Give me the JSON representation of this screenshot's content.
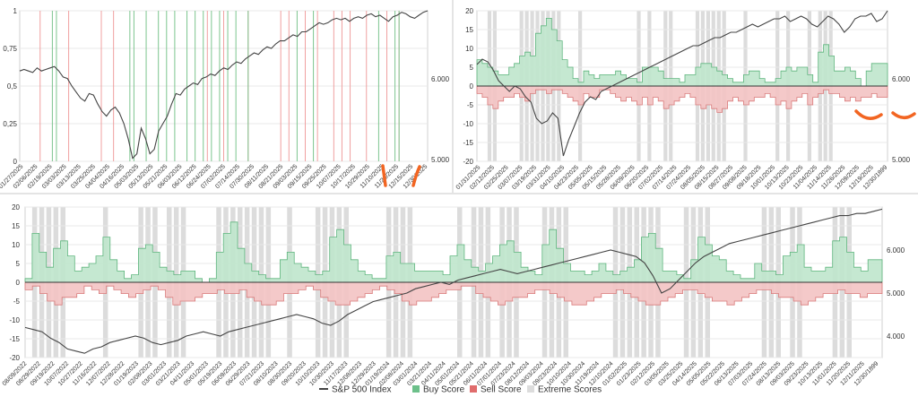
{
  "colors": {
    "sp500_line": "#444444",
    "buy_fill": "#bfe5cc",
    "buy_stroke": "#5fb57e",
    "sell_fill": "#f3c3c3",
    "sell_stroke": "#d97b7b",
    "extreme_fill": "#dcdcdc",
    "annotation": "#f26522",
    "grid": "#e8e8e8",
    "divider": "#c8c8c8"
  },
  "legend": {
    "items": [
      {
        "label": "S&P 500 Index",
        "swatch": "line",
        "color": "#444444"
      },
      {
        "label": "Buy Score",
        "swatch": "box",
        "color": "#6cc08a"
      },
      {
        "label": "Sell Score",
        "swatch": "box",
        "color": "#e06c6c"
      },
      {
        "label": "Extreme Scores",
        "swatch": "box",
        "color": "#dcdcdc"
      }
    ]
  },
  "chart_data": [
    {
      "type": "line",
      "title": "",
      "left_axis": {
        "ticks": [
          "0",
          "0,25",
          "0,5",
          "0,75",
          "1"
        ],
        "ylim": [
          0,
          1
        ]
      },
      "right_axis": {
        "ticks": [
          "5.000",
          "6.000"
        ]
      },
      "x_tick_labels": [
        "01/27/2025",
        "02/06/2025",
        "02/19/2025",
        "03/03/2025",
        "03/13/2025",
        "03/25/2025",
        "04/04/2025",
        "04/16/2025",
        "05/03/2025",
        "05/13/2025",
        "05/21/2025",
        "06/03/2025",
        "06/12/2025",
        "06/24/2025",
        "07/02/2025",
        "07/14/2025",
        "07/30/2025",
        "08/11/2025",
        "08/21/2025",
        "09/03/2025",
        "09/15/2025",
        "09/25/2025",
        "10/07/2025",
        "10/17/2025",
        "10/29/2025",
        "11/10/2025",
        "11/20/2025",
        "12/15/2025",
        "12/30/2025"
      ],
      "series": [
        {
          "name": "S&P 500 Index",
          "values": [
            0.6,
            0.61,
            0.6,
            0.59,
            0.62,
            0.6,
            0.61,
            0.62,
            0.63,
            0.6,
            0.56,
            0.55,
            0.5,
            0.46,
            0.42,
            0.4,
            0.45,
            0.44,
            0.38,
            0.33,
            0.3,
            0.34,
            0.36,
            0.32,
            0.25,
            0.15,
            0.02,
            0.05,
            0.22,
            0.15,
            0.05,
            0.08,
            0.2,
            0.25,
            0.3,
            0.38,
            0.45,
            0.44,
            0.48,
            0.5,
            0.52,
            0.51,
            0.55,
            0.56,
            0.58,
            0.57,
            0.6,
            0.62,
            0.61,
            0.64,
            0.66,
            0.65,
            0.68,
            0.7,
            0.72,
            0.71,
            0.74,
            0.76,
            0.75,
            0.78,
            0.8,
            0.8,
            0.82,
            0.84,
            0.83,
            0.86,
            0.86,
            0.88,
            0.9,
            0.92,
            0.91,
            0.92,
            0.94,
            0.95,
            0.94,
            0.95,
            0.93,
            0.95,
            0.96,
            0.95,
            0.97,
            0.98,
            0.96,
            0.97,
            0.95,
            0.93,
            0.96,
            0.97,
            0.99,
            0.98,
            0.96,
            0.95,
            0.97,
            0.99,
            1.0
          ]
        }
      ],
      "buy_signal_positions": [
        0.08,
        0.09,
        0.27,
        0.28,
        0.31,
        0.34,
        0.36,
        0.38,
        0.41,
        0.43,
        0.45,
        0.47,
        0.49,
        0.51,
        0.53,
        0.56,
        0.68,
        0.72,
        0.88,
        0.92,
        0.93
      ],
      "sell_signal_positions": [
        0.05,
        0.12,
        0.2,
        0.23,
        0.46,
        0.5,
        0.56,
        0.64,
        0.66,
        0.7,
        0.73,
        0.77,
        0.79,
        0.81,
        0.85,
        0.9,
        0.93
      ]
    },
    {
      "type": "area",
      "title": "",
      "left_axis": {
        "ticks": [
          "-20",
          "-15",
          "-10",
          "-5",
          "0",
          "5",
          "10",
          "15",
          "20"
        ],
        "ylim": [
          -20,
          20
        ]
      },
      "right_axis": {
        "ticks": [
          "5.000",
          "6.000"
        ]
      },
      "x_tick_labels": [
        "01/31/2025",
        "02/12/2025",
        "02/25/2025",
        "03/07/2025",
        "03/19/2025",
        "03/31/2025",
        "04/10/2025",
        "04/23/2025",
        "05/05/2025",
        "05/15/2025",
        "05/28/2025",
        "06/09/2025",
        "06/20/2025",
        "07/02/2025",
        "07/14/2025",
        "07/24/2025",
        "08/05/2025",
        "08/15/2025",
        "08/27/2025",
        "09/08/2025",
        "09/18/2025",
        "10/01/2025",
        "10/13/2025",
        "10/23/2025",
        "11/04/2025",
        "11/14/2025",
        "11/26/2025",
        "12/09/2025",
        "12/19/2025",
        "12/30/1899"
      ],
      "buy_score": [
        7,
        6,
        5,
        4,
        3,
        3,
        5,
        6,
        8,
        9,
        8,
        14,
        16,
        18,
        15,
        12,
        7,
        5,
        2,
        1,
        4,
        3,
        2,
        3,
        3,
        3,
        4,
        3,
        2,
        2,
        1,
        5,
        5,
        5,
        4,
        2,
        2,
        2,
        1,
        3,
        3,
        5,
        6,
        6,
        5,
        4,
        3,
        2,
        1,
        1,
        3,
        4,
        4,
        2,
        1,
        1,
        2,
        4,
        5,
        4,
        5,
        5,
        3,
        1,
        9,
        11,
        8,
        4,
        4,
        5,
        4,
        2,
        0,
        4,
        6,
        6,
        6
      ],
      "sell_score": [
        -2,
        -3,
        -5,
        -6,
        -4,
        -3,
        -3,
        -2,
        -3,
        -4,
        -2,
        -1,
        -1,
        -2,
        -1,
        -1,
        -2,
        -3,
        -4,
        -5,
        -2,
        -3,
        -3,
        -1,
        -1,
        -2,
        -3,
        -4,
        -3,
        -4,
        -5,
        -3,
        -5,
        -3,
        -4,
        -6,
        -5,
        -4,
        -3,
        -2,
        -3,
        -5,
        -6,
        -5,
        -6,
        -7,
        -6,
        -4,
        -3,
        -4,
        -5,
        -4,
        -3,
        -3,
        -2,
        -3,
        -5,
        -4,
        -6,
        -4,
        -3,
        -2,
        -5,
        -3,
        -2,
        -1,
        -2,
        -2,
        -3,
        -4,
        -3,
        -4,
        -3,
        -3,
        -2,
        -3,
        -3
      ],
      "series": [
        {
          "name": "S&P 500 Index",
          "values": [
            6.0,
            6.1,
            6.05,
            5.9,
            5.7,
            5.6,
            5.5,
            5.6,
            5.55,
            5.4,
            5.3,
            5.0,
            4.9,
            4.95,
            5.1,
            5.0,
            4.3,
            4.6,
            4.85,
            5.1,
            5.3,
            5.4,
            5.35,
            5.5,
            5.55,
            5.6,
            5.65,
            5.7,
            5.75,
            5.8,
            5.85,
            5.9,
            5.95,
            6.0,
            6.05,
            6.1,
            6.15,
            6.2,
            6.25,
            6.3,
            6.35,
            6.35,
            6.4,
            6.45,
            6.5,
            6.5,
            6.55,
            6.6,
            6.6,
            6.65,
            6.7,
            6.75,
            6.7,
            6.75,
            6.8,
            6.85,
            6.85,
            6.9,
            6.8,
            6.85,
            6.9,
            6.85,
            6.75,
            6.7,
            6.8,
            6.9,
            6.85,
            6.75,
            6.6,
            6.7,
            6.85,
            6.9,
            6.9,
            6.95,
            6.8,
            6.85,
            7.0
          ]
        }
      ]
    },
    {
      "type": "area",
      "title": "",
      "left_axis": {
        "ticks": [
          "-20",
          "-15",
          "-10",
          "-5",
          "0",
          "5",
          "10",
          "15",
          "20"
        ],
        "ylim": [
          -20,
          20
        ]
      },
      "right_axis": {
        "ticks": [
          "4.000",
          "5.000",
          "6.000"
        ]
      },
      "x_tick_labels": [
        "08/09/2022",
        "08/29/2022",
        "09/19/2022",
        "10/07/2022",
        "10/27/2022",
        "11/16/2022",
        "12/07/2022",
        "12/28/2022",
        "01/19/2023",
        "02/08/2023",
        "03/01/2023",
        "03/21/2023",
        "04/11/2023",
        "05/01/2023",
        "05/19/2023",
        "06/09/2023",
        "06/29/2023",
        "07/21/2023",
        "08/10/2023",
        "08/30/2023",
        "09/20/2023",
        "10/10/2023",
        "10/30/2023",
        "11/17/2023",
        "12/08/2023",
        "12/29/2023",
        "01/19/2024",
        "02/08/2024",
        "03/01/2024",
        "03/21/2024",
        "04/11/2024",
        "05/01/2024",
        "05/21/2024",
        "06/11/2024",
        "07/01/2024",
        "07/23/2024",
        "08/12/2024",
        "09/03/2024",
        "09/23/2024",
        "10/10/2024",
        "10/30/2024",
        "11/19/2024",
        "12/10/2024",
        "01/02/2025",
        "01/23/2025",
        "02/12/2025",
        "03/05/2025",
        "03/25/2025",
        "04/14/2025",
        "05/05/2025",
        "05/22/2025",
        "06/13/2025",
        "07/03/2025",
        "07/24/2025",
        "08/13/2025",
        "09/03/2025",
        "09/23/2025",
        "10/13/2025",
        "11/01/2025",
        "11/20/2025",
        "12/11/2025",
        "12/30/1899"
      ],
      "buy_score": [
        1,
        13,
        8,
        4,
        9,
        11,
        7,
        3,
        4,
        5,
        7,
        12,
        6,
        3,
        1,
        2,
        9,
        10,
        8,
        4,
        3,
        2,
        3,
        3,
        1,
        0,
        1,
        8,
        13,
        16,
        9,
        5,
        3,
        2,
        1,
        1,
        6,
        8,
        5,
        4,
        3,
        2,
        3,
        12,
        14,
        10,
        6,
        3,
        2,
        1,
        1,
        7,
        8,
        5,
        5,
        3,
        3,
        3,
        3,
        2,
        7,
        10,
        6,
        4,
        3,
        5,
        7,
        10,
        11,
        8,
        4,
        3,
        2,
        10,
        14,
        9,
        5,
        3,
        3,
        2,
        3,
        5,
        3,
        2,
        3,
        4,
        6,
        12,
        13,
        9,
        3,
        3,
        2,
        1,
        6,
        12,
        10,
        7,
        6,
        3,
        2,
        1,
        1,
        5,
        3,
        3,
        2,
        7,
        8,
        10,
        4,
        3,
        3,
        4,
        11,
        12,
        8,
        4,
        3,
        6,
        6
      ],
      "sell_score": [
        -2,
        -1,
        -3,
        -5,
        -6,
        -4,
        -4,
        -3,
        -1,
        -2,
        -3,
        -1,
        -2,
        -3,
        -4,
        -3,
        -2,
        -1,
        -2,
        -4,
        -6,
        -5,
        -5,
        -4,
        -3,
        -3,
        -2,
        -3,
        -3,
        -2,
        -4,
        -5,
        -6,
        -6,
        -5,
        -3,
        -3,
        -2,
        -1,
        -2,
        -4,
        -5,
        -6,
        -6,
        -5,
        -4,
        -3,
        -2,
        -1,
        -2,
        -3,
        -5,
        -6,
        -5,
        -5,
        -4,
        -3,
        -2,
        -2,
        -1,
        -1,
        -3,
        -4,
        -5,
        -6,
        -5,
        -4,
        -4,
        -3,
        -2,
        -2,
        -3,
        -4,
        -5,
        -6,
        -6,
        -5,
        -4,
        -3,
        -3,
        -2,
        -3,
        -4,
        -5,
        -6,
        -6,
        -5,
        -4,
        -3,
        -2,
        -2,
        -3,
        -4,
        -5,
        -5,
        -6,
        -5,
        -4,
        -3,
        -2,
        -2,
        -3,
        -4,
        -4,
        -5,
        -6,
        -5,
        -4,
        -3,
        -3,
        -2,
        -3,
        -3,
        -4,
        -3,
        -3
      ],
      "series": [
        {
          "name": "S&P 500 Index",
          "values": [
            4.2,
            4.15,
            4.1,
            3.95,
            3.85,
            3.7,
            3.65,
            3.6,
            3.7,
            3.75,
            3.85,
            3.9,
            3.95,
            4.0,
            3.95,
            3.85,
            3.8,
            3.85,
            3.9,
            4.0,
            4.05,
            4.1,
            4.05,
            4.0,
            4.1,
            4.15,
            4.2,
            4.25,
            4.3,
            4.35,
            4.4,
            4.45,
            4.5,
            4.45,
            4.4,
            4.3,
            4.25,
            4.35,
            4.5,
            4.6,
            4.7,
            4.8,
            4.85,
            4.9,
            4.95,
            5.0,
            5.1,
            5.15,
            5.2,
            5.25,
            5.2,
            5.3,
            5.35,
            5.4,
            5.45,
            5.5,
            5.55,
            5.5,
            5.45,
            5.5,
            5.55,
            5.6,
            5.65,
            5.7,
            5.75,
            5.8,
            5.85,
            5.9,
            5.95,
            6.0,
            5.95,
            5.9,
            5.85,
            5.7,
            5.4,
            5.0,
            5.1,
            5.3,
            5.5,
            5.7,
            5.85,
            5.95,
            6.05,
            6.15,
            6.2,
            6.25,
            6.3,
            6.35,
            6.4,
            6.45,
            6.5,
            6.55,
            6.6,
            6.65,
            6.7,
            6.75,
            6.8,
            6.8,
            6.85,
            6.85,
            6.9,
            6.95
          ]
        }
      ],
      "right_axis_range": [
        3.5,
        7.0
      ]
    }
  ]
}
